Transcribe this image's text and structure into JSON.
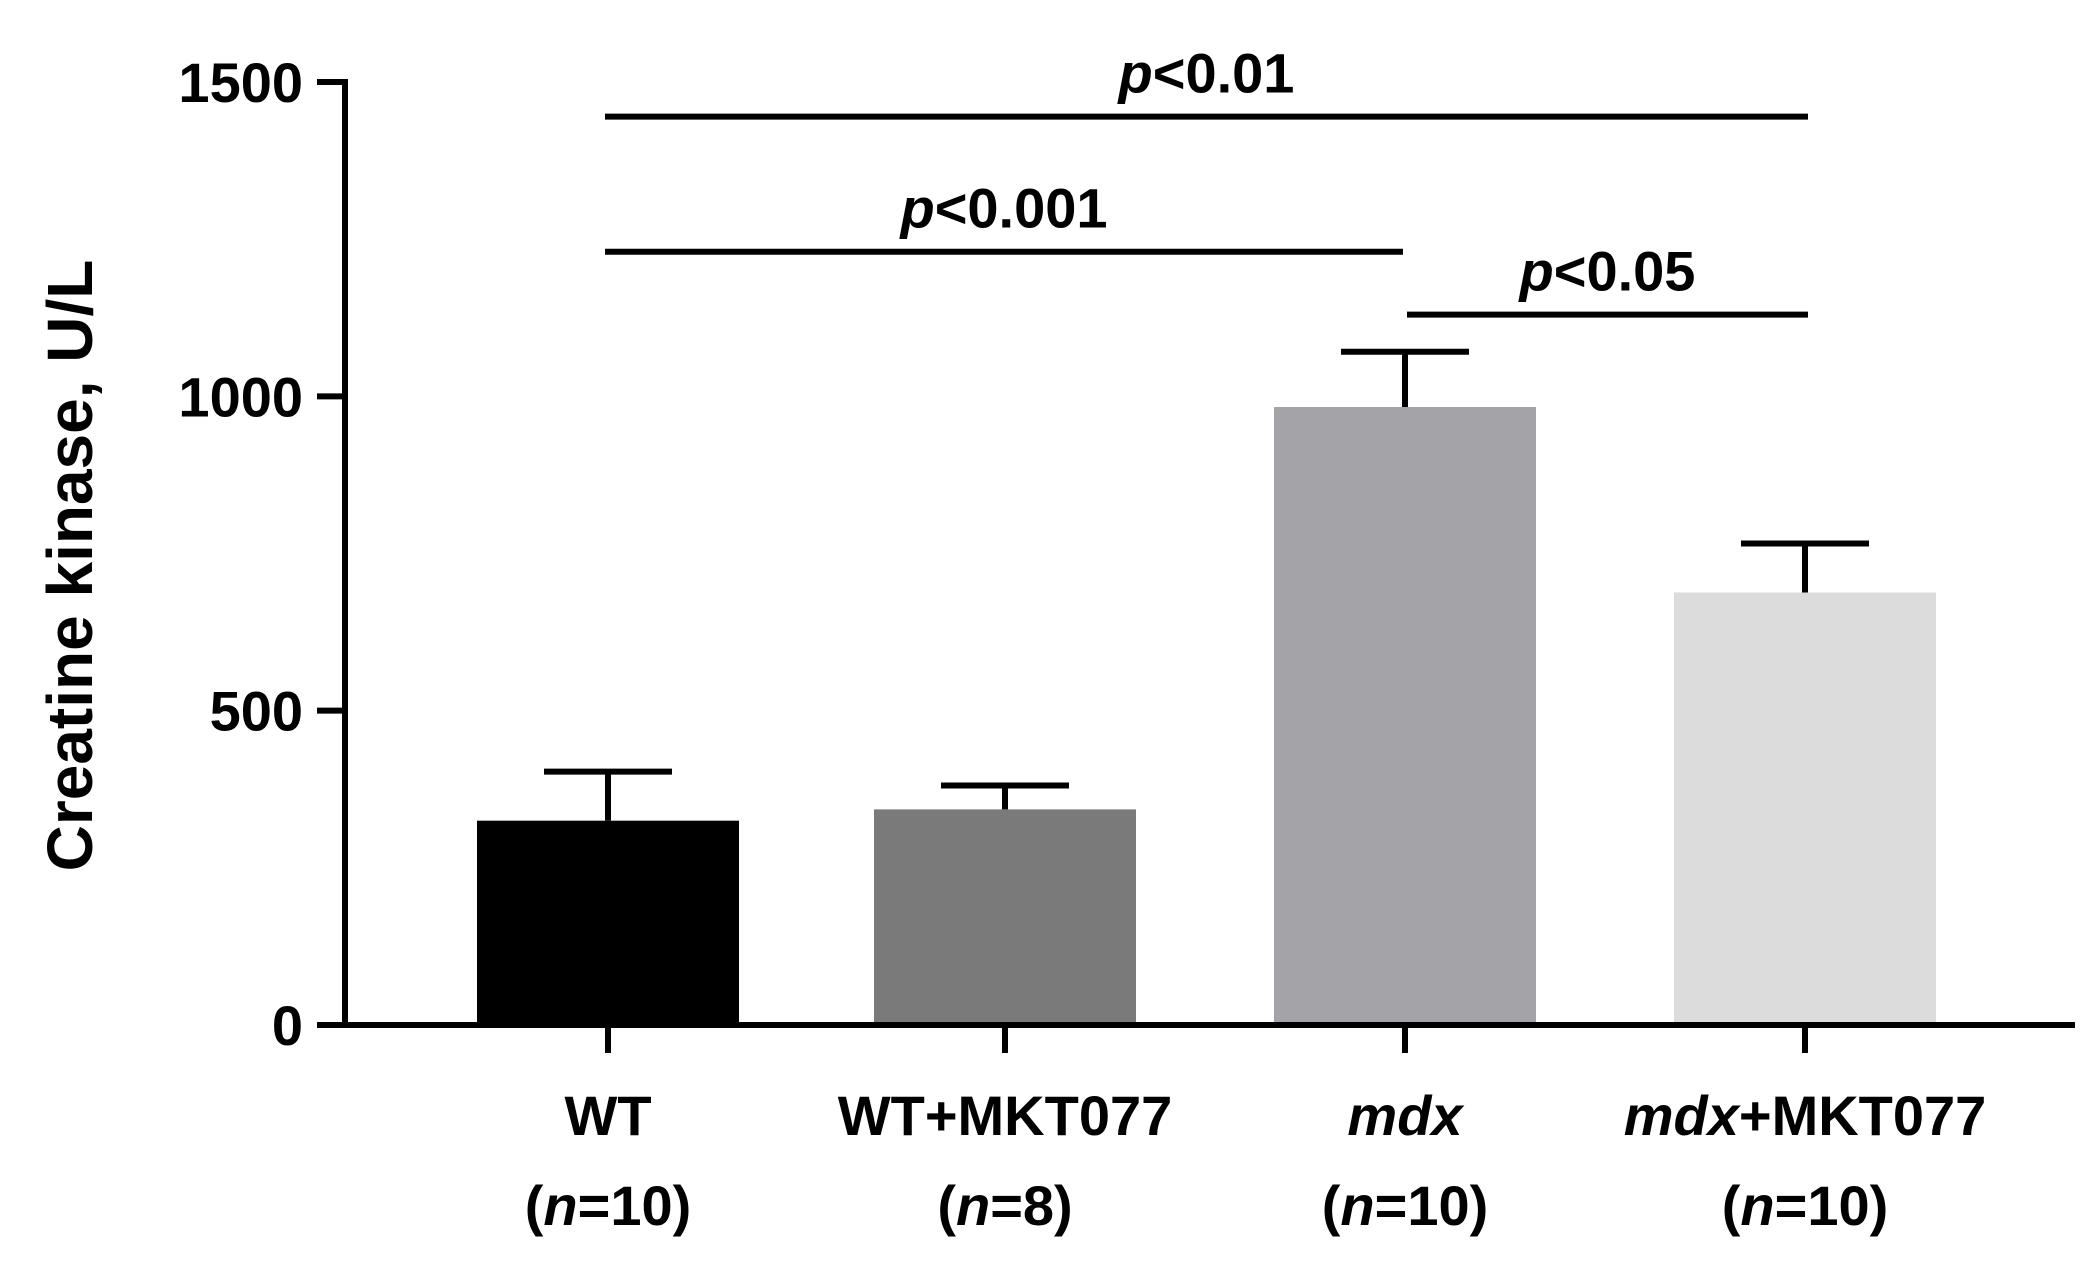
{
  "chart_data": {
    "type": "bar",
    "ylabel": "Creatine kinase, U/L",
    "ylim": [
      0,
      1500
    ],
    "yticks": [
      0,
      500,
      1000,
      1500
    ],
    "grid": false,
    "colors": [
      "#000000",
      "#7a7a7a",
      "#a4a3a8",
      "#dcdcdc"
    ],
    "categories": [
      {
        "name_italic": "",
        "name_rest": "WT",
        "n_prefix": "(",
        "n_italic": "n",
        "n_rest": "=10)"
      },
      {
        "name_italic": "",
        "name_rest": "WT+MKT077",
        "n_prefix": "(",
        "n_italic": "n",
        "n_rest": "=8)"
      },
      {
        "name_italic": "mdx",
        "name_rest": "",
        "n_prefix": "(",
        "n_italic": "n",
        "n_rest": "=10)"
      },
      {
        "name_italic": "mdx",
        "name_rest": "+MKT077",
        "n_prefix": "(",
        "n_italic": "n",
        "n_rest": "=10)"
      }
    ],
    "values": [
      325,
      343,
      983,
      688
    ],
    "errors": [
      78,
      38,
      88,
      78
    ],
    "significance": [
      {
        "from": 0,
        "to": 3,
        "y": 1445,
        "p_italic": "p",
        "p_rest": "<0.01"
      },
      {
        "from": 0,
        "to": 2,
        "y": 1230,
        "p_italic": "p",
        "p_rest": "<0.001"
      },
      {
        "from": 2,
        "to": 3,
        "y": 1130,
        "p_italic": "p",
        "p_rest": "<0.05"
      }
    ]
  }
}
